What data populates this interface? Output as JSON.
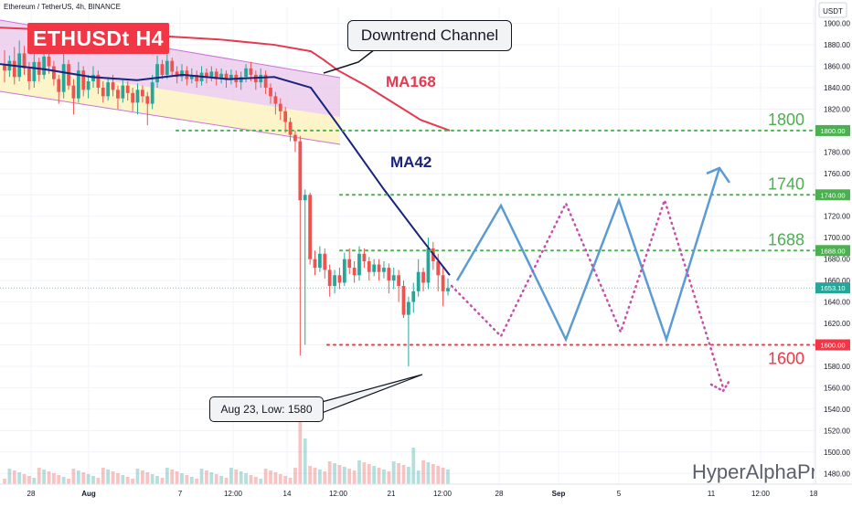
{
  "header": {
    "symbol_line": "Ethereum / TetherUS, 4h, BINANCE",
    "currency": "USDT",
    "badge": "ETHUSDt H4"
  },
  "annotations": {
    "downtrend": "Downtrend Channel",
    "ma168": "MA168",
    "ma42": "MA42",
    "low_callout": "Aug 23, Low: 1580",
    "watermark": "HyperAlphaPro"
  },
  "colors": {
    "up_candle": "#26a69a",
    "down_candle": "#ef5350",
    "ma168": "#e53950",
    "ma42": "#1a237e",
    "level_green": "#4caf50",
    "level_red": "#f23645",
    "projection_blue": "#5b9bd5",
    "projection_pink": "#c74fa8",
    "badge_bg": "#f23645",
    "channel_pink": "#e8c5ea",
    "channel_yellow": "#fdf3c4"
  },
  "chart_data": {
    "type": "candlestick",
    "title": "ETHUSDt H4",
    "ylim": [
      1470,
      1915
    ],
    "y_ticks": [
      1480,
      1500,
      1520,
      1540,
      1560,
      1580,
      1600,
      1620,
      1640,
      1660,
      1680,
      1700,
      1720,
      1740,
      1760,
      1780,
      1800,
      1820,
      1840,
      1860,
      1880,
      1900
    ],
    "x_ticks": [
      "28",
      "Aug",
      "7",
      "12:00",
      "14",
      "12:00",
      "21",
      "12:00",
      "28",
      "Sep",
      "5",
      "11",
      "12:00",
      "18"
    ],
    "levels": [
      {
        "value": 1800,
        "label": "1800",
        "axis_label": "1800.00",
        "color": "green"
      },
      {
        "value": 1740,
        "label": "1740",
        "axis_label": "1740.00",
        "color": "green"
      },
      {
        "value": 1688,
        "label": "1688",
        "axis_label": "1688.00",
        "color": "green"
      },
      {
        "value": 1600,
        "label": "1600",
        "axis_label": "1600.00",
        "color": "red"
      }
    ],
    "current_price": {
      "value": 1653.1,
      "label": "1653.10"
    },
    "series": [
      {
        "name": "MA168",
        "values": [
          1896,
          1893,
          1889,
          1885,
          1880,
          1874,
          1866,
          1856,
          1842,
          1826,
          1810,
          1800
        ]
      },
      {
        "name": "MA42",
        "values": [
          1862,
          1857,
          1850,
          1847,
          1852,
          1848,
          1850,
          1840,
          1805,
          1745,
          1700,
          1665
        ]
      }
    ],
    "candles": [
      [
        1862,
        1856,
        1875,
        1845
      ],
      [
        1856,
        1865,
        1870,
        1850
      ],
      [
        1865,
        1850,
        1878,
        1843
      ],
      [
        1850,
        1872,
        1884,
        1846
      ],
      [
        1872,
        1858,
        1879,
        1852
      ],
      [
        1858,
        1846,
        1864,
        1838
      ],
      [
        1846,
        1864,
        1872,
        1840
      ],
      [
        1864,
        1852,
        1868,
        1846
      ],
      [
        1852,
        1869,
        1874,
        1848
      ],
      [
        1869,
        1860,
        1875,
        1853
      ],
      [
        1860,
        1848,
        1865,
        1842
      ],
      [
        1848,
        1836,
        1852,
        1825
      ],
      [
        1836,
        1862,
        1878,
        1830
      ],
      [
        1862,
        1842,
        1866,
        1838
      ],
      [
        1842,
        1830,
        1848,
        1815
      ],
      [
        1830,
        1856,
        1864,
        1826
      ],
      [
        1856,
        1838,
        1860,
        1832
      ],
      [
        1838,
        1846,
        1852,
        1830
      ],
      [
        1846,
        1852,
        1860,
        1840
      ],
      [
        1852,
        1840,
        1856,
        1834
      ],
      [
        1840,
        1832,
        1846,
        1826
      ],
      [
        1832,
        1845,
        1850,
        1828
      ],
      [
        1845,
        1838,
        1852,
        1832
      ],
      [
        1838,
        1830,
        1842,
        1820
      ],
      [
        1830,
        1842,
        1848,
        1826
      ],
      [
        1842,
        1835,
        1846,
        1828
      ],
      [
        1835,
        1826,
        1840,
        1818
      ],
      [
        1826,
        1838,
        1844,
        1815
      ],
      [
        1838,
        1832,
        1842,
        1826
      ],
      [
        1832,
        1825,
        1836,
        1805
      ],
      [
        1825,
        1845,
        1852,
        1820
      ],
      [
        1845,
        1862,
        1870,
        1840
      ],
      [
        1862,
        1852,
        1866,
        1848
      ],
      [
        1852,
        1865,
        1872,
        1848
      ],
      [
        1865,
        1855,
        1868,
        1850
      ],
      [
        1855,
        1850,
        1860,
        1844
      ],
      [
        1850,
        1856,
        1862,
        1846
      ],
      [
        1856,
        1848,
        1860,
        1842
      ],
      [
        1848,
        1852,
        1858,
        1844
      ],
      [
        1852,
        1846,
        1856,
        1840
      ],
      [
        1846,
        1854,
        1860,
        1842
      ],
      [
        1854,
        1850,
        1858,
        1844
      ],
      [
        1850,
        1855,
        1860,
        1846
      ],
      [
        1855,
        1848,
        1858,
        1842
      ],
      [
        1848,
        1853,
        1858,
        1844
      ],
      [
        1853,
        1847,
        1856,
        1840
      ],
      [
        1847,
        1852,
        1857,
        1843
      ],
      [
        1852,
        1845,
        1856,
        1840
      ],
      [
        1845,
        1850,
        1855,
        1838
      ],
      [
        1850,
        1858,
        1862,
        1845
      ],
      [
        1858,
        1852,
        1864,
        1846
      ],
      [
        1852,
        1845,
        1856,
        1838
      ],
      [
        1845,
        1852,
        1858,
        1840
      ],
      [
        1852,
        1840,
        1856,
        1834
      ],
      [
        1840,
        1832,
        1844,
        1825
      ],
      [
        1832,
        1825,
        1836,
        1815
      ],
      [
        1825,
        1818,
        1830,
        1810
      ],
      [
        1818,
        1808,
        1822,
        1798
      ],
      [
        1808,
        1796,
        1812,
        1790
      ],
      [
        1796,
        1790,
        1800,
        1780
      ],
      [
        1790,
        1735,
        1795,
        1590
      ],
      [
        1735,
        1740,
        1745,
        1600
      ],
      [
        1740,
        1680,
        1742,
        1675
      ],
      [
        1680,
        1672,
        1688,
        1665
      ],
      [
        1672,
        1685,
        1692,
        1668
      ],
      [
        1685,
        1670,
        1690,
        1662
      ],
      [
        1670,
        1655,
        1675,
        1645
      ],
      [
        1655,
        1665,
        1670,
        1648
      ],
      [
        1665,
        1658,
        1672,
        1652
      ],
      [
        1658,
        1680,
        1686,
        1655
      ],
      [
        1680,
        1672,
        1690,
        1666
      ],
      [
        1672,
        1665,
        1678,
        1658
      ],
      [
        1665,
        1685,
        1692,
        1660
      ],
      [
        1685,
        1678,
        1690,
        1672
      ],
      [
        1678,
        1668,
        1682,
        1660
      ],
      [
        1668,
        1675,
        1680,
        1664
      ],
      [
        1675,
        1668,
        1680,
        1660
      ],
      [
        1668,
        1672,
        1678,
        1662
      ],
      [
        1672,
        1660,
        1676,
        1648
      ],
      [
        1660,
        1665,
        1672,
        1652
      ],
      [
        1665,
        1655,
        1670,
        1640
      ],
      [
        1655,
        1628,
        1660,
        1625
      ],
      [
        1628,
        1640,
        1645,
        1580
      ],
      [
        1640,
        1650,
        1658,
        1630
      ],
      [
        1650,
        1668,
        1680,
        1645
      ],
      [
        1668,
        1658,
        1672,
        1650
      ],
      [
        1658,
        1690,
        1700,
        1652
      ],
      [
        1690,
        1678,
        1696,
        1670
      ],
      [
        1678,
        1665,
        1685,
        1650
      ],
      [
        1665,
        1650,
        1672,
        1636
      ],
      [
        1650,
        1653,
        1662,
        1646
      ]
    ],
    "projection_blue": [
      [
        0,
        1660
      ],
      [
        1,
        1730
      ],
      [
        2,
        1605
      ],
      [
        3,
        1735
      ],
      [
        4,
        1605
      ],
      [
        5,
        1765
      ]
    ],
    "projection_pink": [
      [
        0,
        1655
      ],
      [
        1,
        1608
      ],
      [
        2,
        1732
      ],
      [
        3,
        1612
      ],
      [
        4,
        1735
      ],
      [
        5,
        1560
      ]
    ]
  }
}
